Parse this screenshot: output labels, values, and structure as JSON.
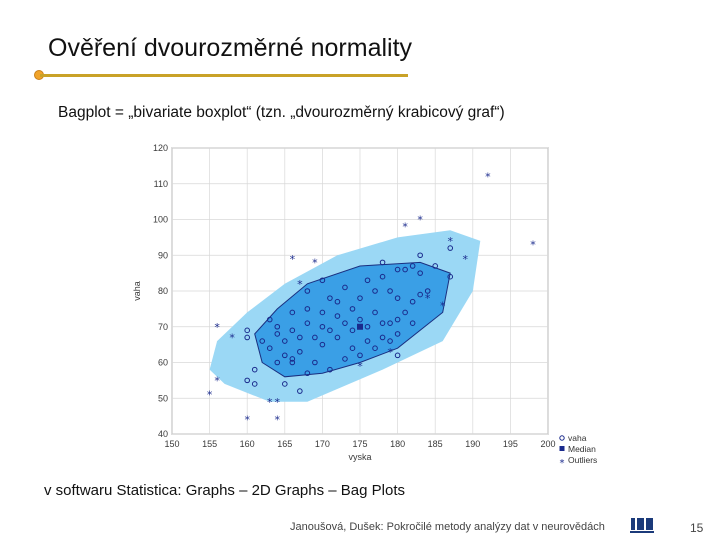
{
  "slide": {
    "title": "Ověření dvourozměrné normality",
    "subtitle": "Bagplot = „bivariate boxplot“ (tzn. „dvourozměrný krabicový graf“)",
    "software_path": "v softwaru Statistica: Graphs – 2D Graphs – Bag Plots",
    "footer": "Janoušová, Dušek: Pokročilé metody analýzy dat v neurovědách",
    "page_number": "15",
    "accent_color": "#c9a227"
  },
  "chart_data": {
    "type": "scatter",
    "subtype": "bagplot",
    "xlabel": "vyska",
    "ylabel": "vaha",
    "xlim": [
      150,
      200
    ],
    "ylim": [
      40,
      120
    ],
    "xticks": [
      150,
      155,
      160,
      165,
      170,
      175,
      180,
      185,
      190,
      195,
      200
    ],
    "yticks": [
      40,
      50,
      60,
      70,
      80,
      90,
      100,
      110,
      120
    ],
    "grid": true,
    "legend_position": "bottom-right",
    "legend": [
      "vaha",
      "Median",
      "Outliers"
    ],
    "colors": {
      "fence": "#9bd8f5",
      "bag": "#3a9fe6",
      "bag_outline": "#1a2f80",
      "points": "#1a2a8c",
      "median": "#1a2a8c",
      "outliers": "#1a2a8c"
    },
    "fence_polygon": [
      [
        155,
        58
      ],
      [
        157,
        54
      ],
      [
        163,
        49
      ],
      [
        168,
        49
      ],
      [
        178,
        58
      ],
      [
        186,
        66
      ],
      [
        190,
        80
      ],
      [
        191,
        94
      ],
      [
        187,
        97
      ],
      [
        180,
        95
      ],
      [
        172,
        90
      ],
      [
        165,
        82
      ],
      [
        160,
        74
      ],
      [
        156,
        66
      ]
    ],
    "bag_polygon": [
      [
        162,
        60
      ],
      [
        165,
        56
      ],
      [
        170,
        57
      ],
      [
        175,
        60
      ],
      [
        180,
        64
      ],
      [
        186,
        74
      ],
      [
        187,
        85
      ],
      [
        183,
        88
      ],
      [
        175,
        87
      ],
      [
        168,
        82
      ],
      [
        164,
        75
      ],
      [
        161,
        68
      ]
    ],
    "median": [
      175,
      70
    ],
    "points": [
      [
        160,
        67
      ],
      [
        160,
        69
      ],
      [
        162,
        66
      ],
      [
        163,
        64
      ],
      [
        163,
        72
      ],
      [
        164,
        70
      ],
      [
        164,
        68
      ],
      [
        165,
        62
      ],
      [
        165,
        66
      ],
      [
        166,
        61
      ],
      [
        166,
        60
      ],
      [
        166,
        69
      ],
      [
        166,
        74
      ],
      [
        167,
        63
      ],
      [
        167,
        67
      ],
      [
        168,
        71
      ],
      [
        168,
        75
      ],
      [
        168,
        80
      ],
      [
        169,
        60
      ],
      [
        169,
        67
      ],
      [
        170,
        65
      ],
      [
        170,
        70
      ],
      [
        170,
        74
      ],
      [
        171,
        69
      ],
      [
        171,
        78
      ],
      [
        172,
        67
      ],
      [
        172,
        73
      ],
      [
        172,
        77
      ],
      [
        173,
        61
      ],
      [
        173,
        71
      ],
      [
        173,
        81
      ],
      [
        174,
        64
      ],
      [
        174,
        69
      ],
      [
        174,
        75
      ],
      [
        175,
        62
      ],
      [
        175,
        72
      ],
      [
        175,
        78
      ],
      [
        176,
        66
      ],
      [
        176,
        70
      ],
      [
        176,
        83
      ],
      [
        177,
        64
      ],
      [
        177,
        74
      ],
      [
        177,
        80
      ],
      [
        178,
        67
      ],
      [
        178,
        71
      ],
      [
        178,
        84
      ],
      [
        179,
        66
      ],
      [
        179,
        71
      ],
      [
        180,
        62
      ],
      [
        180,
        68
      ],
      [
        180,
        72
      ],
      [
        180,
        78
      ],
      [
        180,
        86
      ],
      [
        181,
        74
      ],
      [
        181,
        86
      ],
      [
        182,
        71
      ],
      [
        182,
        77
      ],
      [
        182,
        87
      ],
      [
        183,
        79
      ],
      [
        183,
        85
      ],
      [
        185,
        87
      ],
      [
        187,
        84
      ],
      [
        187,
        92
      ],
      [
        160,
        55
      ],
      [
        161,
        58
      ],
      [
        161,
        54
      ],
      [
        164,
        60
      ],
      [
        165,
        54
      ],
      [
        167,
        52
      ],
      [
        168,
        57
      ],
      [
        171,
        58
      ],
      [
        184,
        80
      ],
      [
        183,
        90
      ],
      [
        170,
        83
      ],
      [
        178,
        88
      ],
      [
        179,
        80
      ]
    ],
    "outliers": [
      [
        155,
        51
      ],
      [
        156,
        55
      ],
      [
        156,
        70
      ],
      [
        158,
        67
      ],
      [
        160,
        44
      ],
      [
        163,
        49
      ],
      [
        164,
        49
      ],
      [
        164,
        44
      ],
      [
        166,
        89
      ],
      [
        167,
        82
      ],
      [
        169,
        88
      ],
      [
        175,
        59
      ],
      [
        179,
        63
      ],
      [
        181,
        98
      ],
      [
        183,
        100
      ],
      [
        184,
        78
      ],
      [
        187,
        94
      ],
      [
        189,
        89
      ],
      [
        192,
        112
      ],
      [
        198,
        93
      ],
      [
        186,
        76
      ]
    ]
  }
}
